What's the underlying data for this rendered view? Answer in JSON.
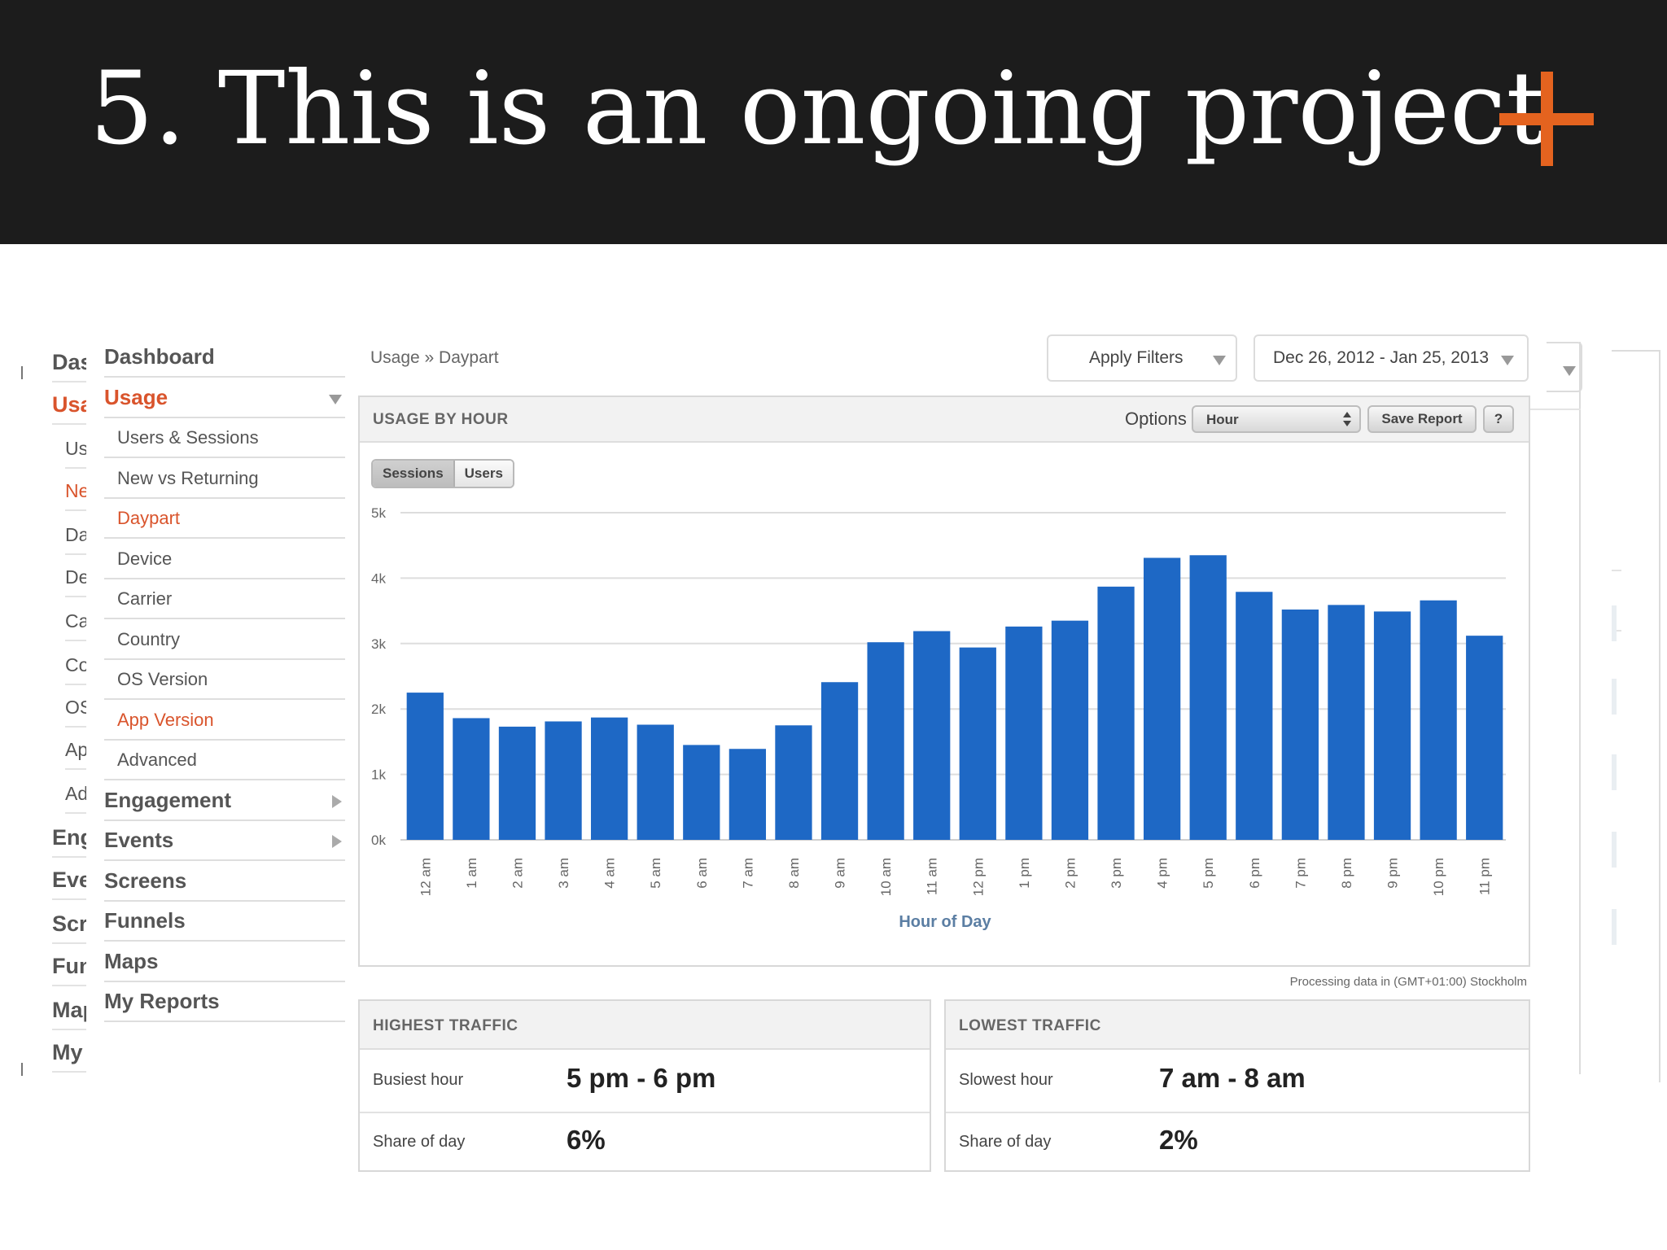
{
  "slide": {
    "title": "5. This is an ongoing project",
    "accent_color": "#e4631f",
    "icon": "plus-icon"
  },
  "ghost_nav": {
    "items": [
      {
        "label": "Dashboard",
        "sub": false,
        "red": false
      },
      {
        "label": "Usage",
        "sub": false,
        "red": true
      },
      {
        "label": "Users & Sessions",
        "sub": true,
        "red": false
      },
      {
        "label": "New vs Returning",
        "sub": true,
        "red": true
      },
      {
        "label": "Daypart",
        "sub": true,
        "red": false
      },
      {
        "label": "Device",
        "sub": true,
        "red": false
      },
      {
        "label": "Carrier",
        "sub": true,
        "red": false
      },
      {
        "label": "Country",
        "sub": true,
        "red": false
      },
      {
        "label": "OS Version",
        "sub": true,
        "red": false
      },
      {
        "label": "App Version",
        "sub": true,
        "red": false
      },
      {
        "label": "Advanced",
        "sub": true,
        "red": false
      },
      {
        "label": "Engagement",
        "sub": false,
        "red": false
      },
      {
        "label": "Events",
        "sub": false,
        "red": false
      },
      {
        "label": "Screens",
        "sub": false,
        "red": false
      },
      {
        "label": "Funnels",
        "sub": false,
        "red": false
      },
      {
        "label": "Maps",
        "sub": false,
        "red": false
      },
      {
        "label": "My Reports",
        "sub": false,
        "red": false
      }
    ]
  },
  "nav": {
    "items": [
      {
        "label": "Dashboard",
        "type": "top",
        "active": false
      },
      {
        "label": "Usage",
        "type": "top",
        "active": true,
        "arrow": "down"
      },
      {
        "label": "Users & Sessions",
        "type": "sub",
        "active": false
      },
      {
        "label": "New vs Returning",
        "type": "sub",
        "active": false
      },
      {
        "label": "Daypart",
        "type": "sub",
        "active": true
      },
      {
        "label": "Device",
        "type": "sub",
        "active": false
      },
      {
        "label": "Carrier",
        "type": "sub",
        "active": false
      },
      {
        "label": "Country",
        "type": "sub",
        "active": false
      },
      {
        "label": "OS Version",
        "type": "sub",
        "active": false
      },
      {
        "label": "App Version",
        "type": "sub",
        "active": true
      },
      {
        "label": "Advanced",
        "type": "sub",
        "active": false
      },
      {
        "label": "Engagement",
        "type": "top",
        "active": false,
        "arrow": "right"
      },
      {
        "label": "Events",
        "type": "top",
        "active": false,
        "arrow": "right"
      },
      {
        "label": "Screens",
        "type": "top",
        "active": false
      },
      {
        "label": "Funnels",
        "type": "top",
        "active": false
      },
      {
        "label": "Maps",
        "type": "top",
        "active": false
      },
      {
        "label": "My Reports",
        "type": "top",
        "active": false
      }
    ],
    "active_color": "#d9542c"
  },
  "toolbar": {
    "breadcrumb": "Usage » Daypart",
    "filters_label": "Apply Filters",
    "date_range": "Dec 26, 2012 - Jan 25, 2013"
  },
  "panel": {
    "title": "USAGE BY HOUR",
    "options_label": "Options",
    "granularity_value": "Hour",
    "save_label": "Save Report",
    "help_label": "?",
    "toggle": {
      "sessions": "Sessions",
      "users": "Users",
      "selected": "sessions"
    },
    "processing_note": "Processing data in (GMT+01:00) Stockholm"
  },
  "chart_data": {
    "type": "bar",
    "xlabel": "Hour of Day",
    "ylabel": "",
    "ylim": [
      0,
      5000
    ],
    "y_ticks": [
      0,
      1000,
      2000,
      3000,
      4000,
      5000
    ],
    "y_tick_labels": [
      "0k",
      "1k",
      "2k",
      "3k",
      "4k",
      "5k"
    ],
    "grid": true,
    "bar_color": "#1e68c5",
    "categories": [
      "12 am",
      "1 am",
      "2 am",
      "3 am",
      "4 am",
      "5 am",
      "6 am",
      "7 am",
      "8 am",
      "9 am",
      "10 am",
      "11 am",
      "12 pm",
      "1 pm",
      "2 pm",
      "3 pm",
      "4 pm",
      "5 pm",
      "6 pm",
      "7 pm",
      "8 pm",
      "9 pm",
      "10 pm",
      "11 pm"
    ],
    "values": [
      2250,
      1860,
      1730,
      1810,
      1870,
      1760,
      1450,
      1390,
      1750,
      2410,
      3020,
      3190,
      2940,
      3260,
      3350,
      3870,
      4310,
      4350,
      3790,
      3520,
      3590,
      3490,
      3660,
      3120
    ]
  },
  "highest": {
    "title": "HIGHEST TRAFFIC",
    "hour_label": "Busiest hour",
    "hour_value": "5 pm - 6 pm",
    "share_label": "Share of day",
    "share_value": "6%"
  },
  "lowest": {
    "title": "LOWEST TRAFFIC",
    "hour_label": "Slowest hour",
    "hour_value": "7 am - 8 am",
    "share_label": "Share of day",
    "share_value": "2%"
  }
}
